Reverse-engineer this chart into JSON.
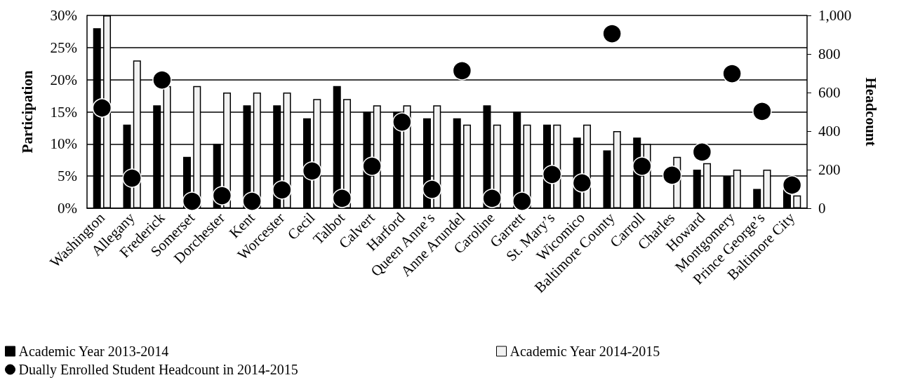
{
  "chart_data": {
    "type": "bar",
    "categories": [
      "Washington",
      "Allegany",
      "Frederick",
      "Somerset",
      "Dorchester",
      "Kent",
      "Worcester",
      "Cecil",
      "Talbot",
      "Calvert",
      "Harford",
      "Queen Anne’s",
      "Anne Arundel",
      "Caroline",
      "Garrett",
      "St. Mary’s",
      "Wicomico",
      "Baltimore County",
      "Carroll",
      "Charles",
      "Howard",
      "Montgomery",
      "Prince George’s",
      "Baltimore City"
    ],
    "series": [
      {
        "name": "Academic Year 2013-2014",
        "color": "#000000",
        "values": [
          28,
          13,
          16,
          8,
          10,
          16,
          16,
          14,
          19,
          15,
          15,
          14,
          14,
          16,
          15,
          13,
          11,
          9,
          11,
          null,
          6,
          5,
          3,
          3
        ]
      },
      {
        "name": "Academic Year 2014-2015",
        "color": "#f2f2f2",
        "values": [
          30,
          23,
          19,
          19,
          18,
          18,
          18,
          17,
          17,
          16,
          16,
          16,
          13,
          13,
          13,
          13,
          13,
          12,
          10,
          8,
          7,
          6,
          6,
          2
        ]
      },
      {
        "name": "Dually Enrolled Student Headcount in 2014-2015",
        "type": "scatter",
        "axis": "y2",
        "color": "#000000",
        "marker": "circle",
        "values": [
          520,
          156,
          665,
          36,
          65,
          36,
          95,
          193,
          51,
          218,
          447,
          98,
          713,
          51,
          36,
          175,
          131,
          905,
          218,
          171,
          291,
          698,
          502,
          120
        ]
      }
    ],
    "ylabel": "Participation",
    "y2label": "Headcount",
    "ylim": [
      0,
      30
    ],
    "yticks": [
      {
        "value": 0,
        "label": "0%"
      },
      {
        "value": 5,
        "label": "5%"
      },
      {
        "value": 10,
        "label": "10%"
      },
      {
        "value": 15,
        "label": "15%"
      },
      {
        "value": 20,
        "label": "20%"
      },
      {
        "value": 25,
        "label": "25%"
      },
      {
        "value": 30,
        "label": "30%"
      }
    ],
    "y2lim": [
      0,
      1000
    ],
    "y2ticks": [
      0,
      200,
      400,
      600,
      800,
      {
        "value": 1000,
        "label": "1,000"
      }
    ],
    "grid": "y",
    "legend": "bottom"
  }
}
